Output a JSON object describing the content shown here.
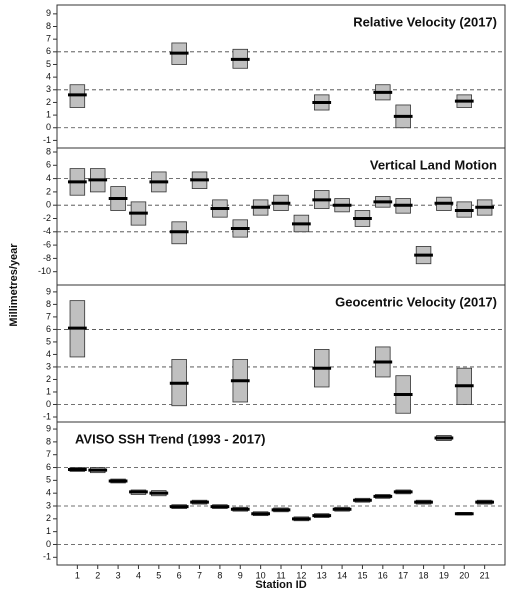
{
  "ylabel": "Millimetres/year",
  "xaxis": {
    "label": "Station ID",
    "xlim": [
      0,
      22
    ],
    "xticks": [
      1,
      2,
      3,
      4,
      5,
      6,
      7,
      8,
      9,
      10,
      11,
      12,
      13,
      14,
      15,
      16,
      17,
      18,
      19,
      20,
      21
    ]
  },
  "chart_data": [
    {
      "type": "interval",
      "title": "Relative Velocity (2017)",
      "title_corner": "right",
      "color": "#c0c0c0",
      "ylim": [
        -1.6,
        9.7
      ],
      "yticks": [
        -1,
        0,
        1,
        2,
        3,
        4,
        5,
        6,
        7,
        8,
        9
      ],
      "hlines": [
        0,
        3,
        6
      ],
      "x": [
        1,
        6,
        9,
        13,
        16,
        17,
        20
      ],
      "values": [
        2.6,
        5.9,
        5.4,
        2.0,
        2.8,
        0.9,
        2.1
      ],
      "low": [
        1.6,
        5.0,
        4.7,
        1.4,
        2.2,
        0.0,
        1.6
      ],
      "high": [
        3.4,
        6.7,
        6.2,
        2.6,
        3.4,
        1.8,
        2.6
      ]
    },
    {
      "type": "interval",
      "title": "Vertical Land Motion",
      "title_corner": "right",
      "color": "#c0c0c0",
      "ylim": [
        -12,
        8.6
      ],
      "yticks": [
        -10,
        -8,
        -6,
        -4,
        -2,
        0,
        2,
        4,
        6,
        8
      ],
      "hlines": [
        -4,
        0,
        4
      ],
      "x": [
        1,
        2,
        3,
        4,
        5,
        6,
        7,
        8,
        9,
        10,
        11,
        12,
        13,
        14,
        15,
        16,
        17,
        18,
        19,
        20,
        21
      ],
      "values": [
        3.5,
        3.8,
        1.0,
        -1.2,
        3.5,
        -4.0,
        3.8,
        -0.5,
        -3.5,
        -0.3,
        0.3,
        -2.8,
        0.8,
        0.0,
        -2.0,
        0.5,
        0.0,
        -7.5,
        0.3,
        -0.8,
        -0.3
      ],
      "low": [
        1.5,
        2.0,
        -0.8,
        -3.0,
        2.0,
        -5.8,
        2.5,
        -1.8,
        -4.8,
        -1.5,
        -0.8,
        -4.0,
        -0.5,
        -1.0,
        -3.2,
        -0.3,
        -1.2,
        -8.8,
        -0.8,
        -1.8,
        -1.5
      ],
      "high": [
        5.5,
        5.5,
        2.8,
        0.5,
        5.0,
        -2.5,
        5.0,
        0.8,
        -2.2,
        0.8,
        1.5,
        -1.5,
        2.2,
        1.0,
        -0.8,
        1.3,
        1.0,
        -6.2,
        1.2,
        0.5,
        0.8
      ]
    },
    {
      "type": "interval",
      "title": "Geocentric Velocity (2017)",
      "title_corner": "right",
      "color": "#c0c0c0",
      "ylim": [
        -1.4,
        9.55
      ],
      "yticks": [
        -1,
        0,
        1,
        2,
        3,
        4,
        5,
        6,
        7,
        8,
        9
      ],
      "hlines": [
        0,
        3,
        6
      ],
      "x": [
        1,
        6,
        9,
        13,
        16,
        17,
        20
      ],
      "values": [
        6.1,
        1.7,
        1.9,
        2.9,
        3.4,
        0.8,
        1.5
      ],
      "low": [
        3.8,
        -0.1,
        0.2,
        1.4,
        2.2,
        -0.7,
        0.0
      ],
      "high": [
        8.3,
        3.6,
        3.6,
        4.4,
        4.6,
        2.3,
        2.9
      ]
    },
    {
      "type": "interval",
      "title": "AVISO SSH Trend (1993 - 2017)",
      "title_corner": "left",
      "color": "#c0c0c0",
      "ylim": [
        -1.6,
        9.55
      ],
      "yticks": [
        -1,
        0,
        1,
        2,
        3,
        4,
        5,
        6,
        7,
        8,
        9
      ],
      "hlines": [
        0,
        3,
        6
      ],
      "x": [
        1,
        2,
        3,
        4,
        5,
        6,
        7,
        8,
        9,
        10,
        11,
        12,
        13,
        14,
        15,
        16,
        17,
        18,
        19,
        20,
        21
      ],
      "values": [
        5.85,
        5.8,
        4.95,
        4.1,
        4.0,
        2.95,
        3.3,
        2.95,
        2.75,
        2.4,
        2.7,
        2.0,
        2.25,
        2.75,
        3.45,
        3.75,
        4.1,
        3.3,
        8.3,
        2.4,
        3.3
      ],
      "low": [
        5.7,
        5.6,
        4.8,
        3.9,
        3.8,
        2.8,
        3.15,
        2.8,
        2.6,
        2.25,
        2.55,
        1.85,
        2.1,
        2.6,
        3.3,
        3.6,
        3.95,
        3.15,
        8.1,
        2.3,
        3.15
      ],
      "high": [
        6.0,
        6.0,
        5.1,
        4.25,
        4.2,
        3.1,
        3.45,
        3.1,
        2.9,
        2.55,
        2.85,
        2.15,
        2.4,
        2.9,
        3.6,
        3.9,
        4.25,
        3.45,
        8.5,
        2.5,
        3.45
      ]
    }
  ]
}
